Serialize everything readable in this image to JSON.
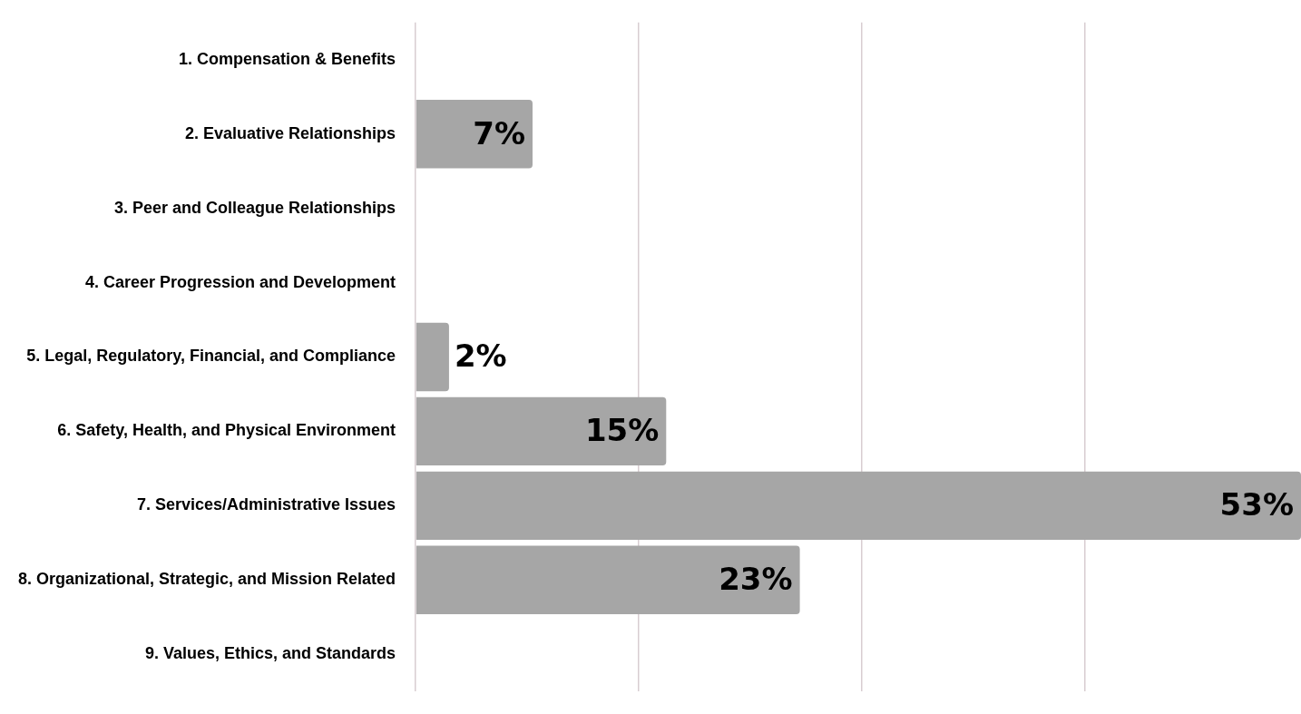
{
  "chart_data": {
    "type": "bar",
    "orientation": "horizontal",
    "categories": [
      "1. Compensation & Benefits",
      "2. Evaluative Relationships",
      "3. Peer and Colleague Relationships",
      "4. Career Progression and Development",
      "5. Legal, Regulatory, Financial, and Compliance",
      "6. Safety, Health, and Physical Environment",
      "7. Services/Administrative Issues",
      "8. Organizational, Strategic, and Mission Related",
      "9. Values, Ethics, and Standards"
    ],
    "values": [
      null,
      7,
      null,
      null,
      2,
      15,
      53,
      23,
      null
    ],
    "value_labels": [
      null,
      "7%",
      null,
      null,
      "2%",
      "15%",
      "53%",
      "23%",
      null
    ],
    "color": "#a6a6a6",
    "xlim": [
      0,
      53
    ],
    "xticks": [
      {
        "value": 0,
        "label": null
      },
      {
        "value": 13.35,
        "label": null
      },
      {
        "value": 26.7,
        "label": null
      },
      {
        "value": 40.05,
        "label": null
      }
    ],
    "tick_labels": "y",
    "grid": "x",
    "legend": false
  }
}
